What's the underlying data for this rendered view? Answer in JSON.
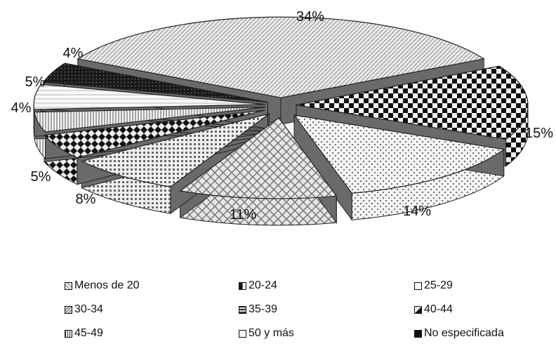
{
  "chart_data": {
    "type": "pie",
    "style": "3d-exploded",
    "categories": [
      "Menos de 20",
      "20-24",
      "25-29",
      "30-34",
      "35-39",
      "40-44",
      "45-49",
      "50 y  más",
      "No especificada"
    ],
    "values": [
      34,
      15,
      14,
      11,
      8,
      5,
      4,
      5,
      4
    ],
    "slice_order_note": "",
    "slices": [
      {
        "label": "34%",
        "value": 34
      },
      {
        "label": "15%",
        "value": 15
      },
      {
        "label": "14%",
        "value": 14
      },
      {
        "label": "11%",
        "value": 11
      },
      {
        "label": "8%",
        "value": 8
      },
      {
        "label": "5%",
        "value": 5
      },
      {
        "label": "4%",
        "value": 4
      },
      {
        "label": "5%",
        "value": 5
      },
      {
        "label": "4%",
        "value": 4
      }
    ],
    "legend_position": "bottom",
    "title": "",
    "colors": {
      "outline": "#222222",
      "light": "#e9e9e9",
      "mid": "#b8b8b8",
      "dark": "#555555",
      "black": "#111111"
    }
  },
  "legend": {
    "rows": [
      [
        "Menos de 20",
        "20-24",
        "25-29"
      ],
      [
        "30-34",
        "35-39",
        "40-44"
      ],
      [
        "45-49",
        "50 y  más",
        "No especificada"
      ]
    ]
  }
}
